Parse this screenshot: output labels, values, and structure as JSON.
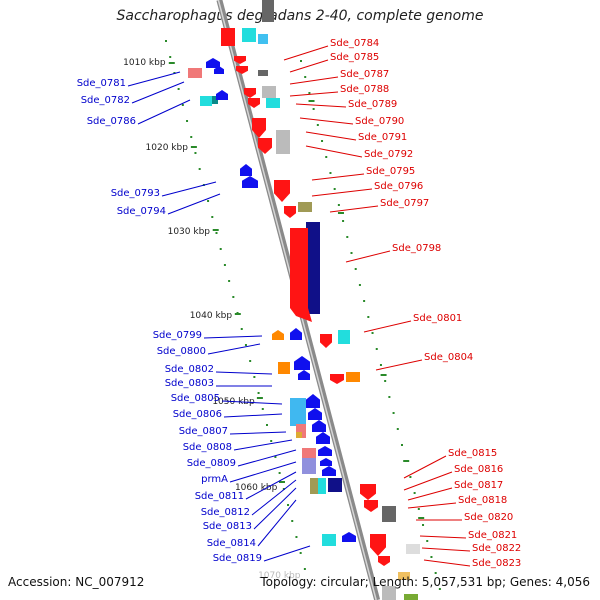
{
  "title": "Saccharophagus degradans 2-40, complete genome",
  "footer": {
    "accession": "Accession: NC_007912",
    "topology": "Topology: circular; Length: 5,057,531 bp; Genes: 4,056"
  },
  "scale_labels": [
    "1010 kbp",
    "1020 kbp",
    "1030 kbp",
    "1040 kbp",
    "1050 kbp",
    "1060 kbp",
    "1070 kbp"
  ],
  "colors": {
    "backbone": "#8a8a8a",
    "right_label": "#dd0000",
    "left_label": "#0000cc",
    "tick": "#2a8a2a"
  },
  "right_genes": [
    "Sde_0784",
    "Sde_0785",
    "Sde_0787",
    "Sde_0788",
    "Sde_0789",
    "Sde_0790",
    "Sde_0791",
    "Sde_0792",
    "Sde_0795",
    "Sde_0796",
    "Sde_0797",
    "Sde_0798",
    "Sde_0801",
    "Sde_0804",
    "Sde_0815",
    "Sde_0816",
    "Sde_0817",
    "Sde_0818",
    "Sde_0820",
    "Sde_0821",
    "Sde_0822",
    "Sde_0823"
  ],
  "left_genes": [
    "Sde_0781",
    "Sde_0782",
    "Sde_0786",
    "Sde_0793",
    "Sde_0794",
    "Sde_0799",
    "Sde_0800",
    "Sde_0802",
    "Sde_0803",
    "Sde_0805",
    "Sde_0806",
    "Sde_0807",
    "Sde_0808",
    "Sde_0809",
    "prmA",
    "Sde_0811",
    "Sde_0812",
    "Sde_0813",
    "Sde_0814",
    "Sde_0819"
  ]
}
